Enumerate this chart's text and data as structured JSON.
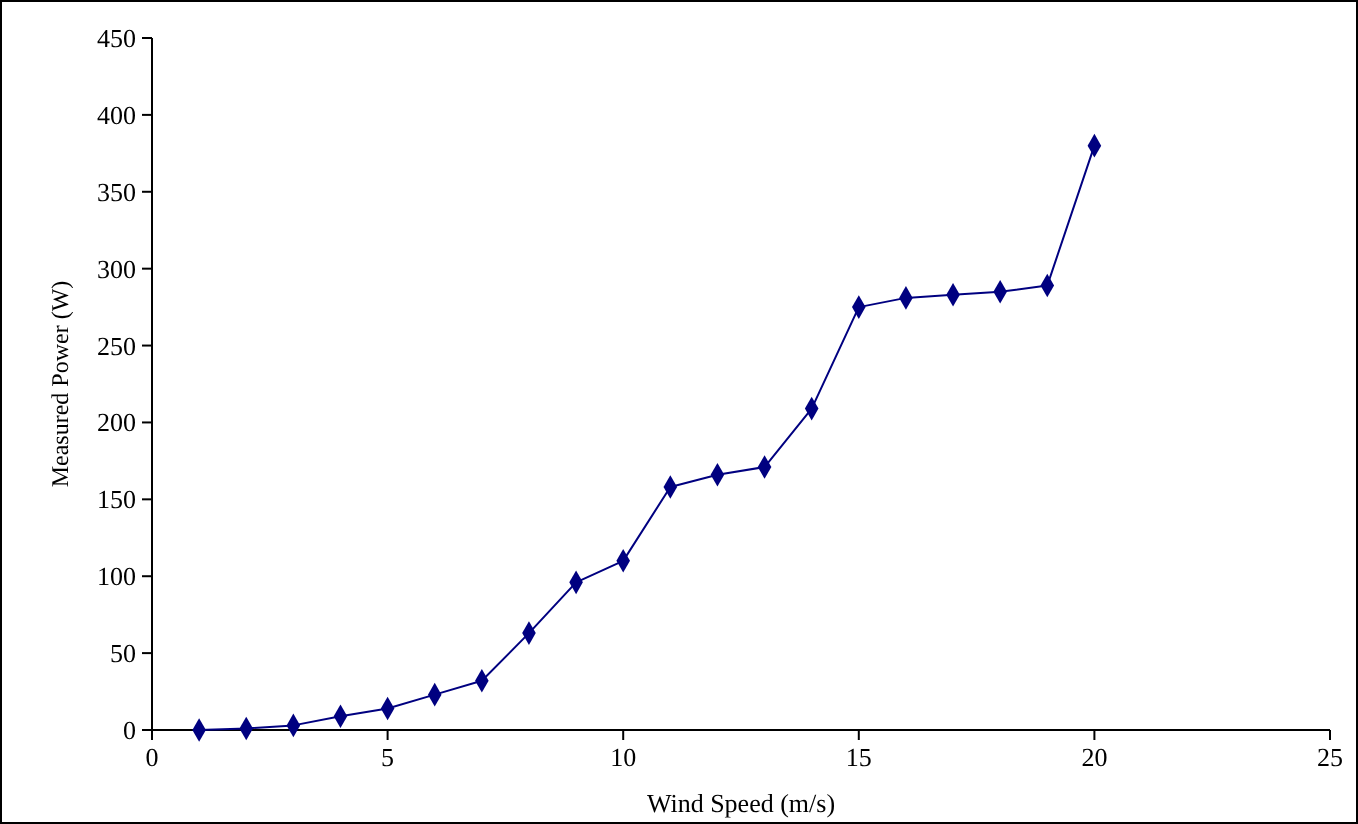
{
  "chart_data": {
    "type": "line",
    "xlabel": "Wind Speed (m/s)",
    "ylabel": "Measured Power (W)",
    "x": [
      1,
      2,
      3,
      4,
      5,
      6,
      7,
      8,
      9,
      10,
      11,
      12,
      13,
      14,
      15,
      16,
      17,
      18,
      19,
      20
    ],
    "series": [
      {
        "color": "#000080",
        "values": [
          0,
          1,
          3,
          9,
          14,
          23,
          32,
          63,
          96,
          110,
          158,
          166,
          171,
          209,
          275,
          281,
          283,
          285,
          289,
          380
        ]
      }
    ],
    "xlim": [
      0,
      25
    ],
    "xticks": [
      0,
      5,
      10,
      15,
      20,
      25
    ],
    "ylim": [
      0,
      450
    ],
    "yticks": [
      0,
      50,
      100,
      150,
      200,
      250,
      300,
      350,
      400,
      450
    ],
    "grid": false,
    "marker": "diamond",
    "line_style": "solid"
  }
}
